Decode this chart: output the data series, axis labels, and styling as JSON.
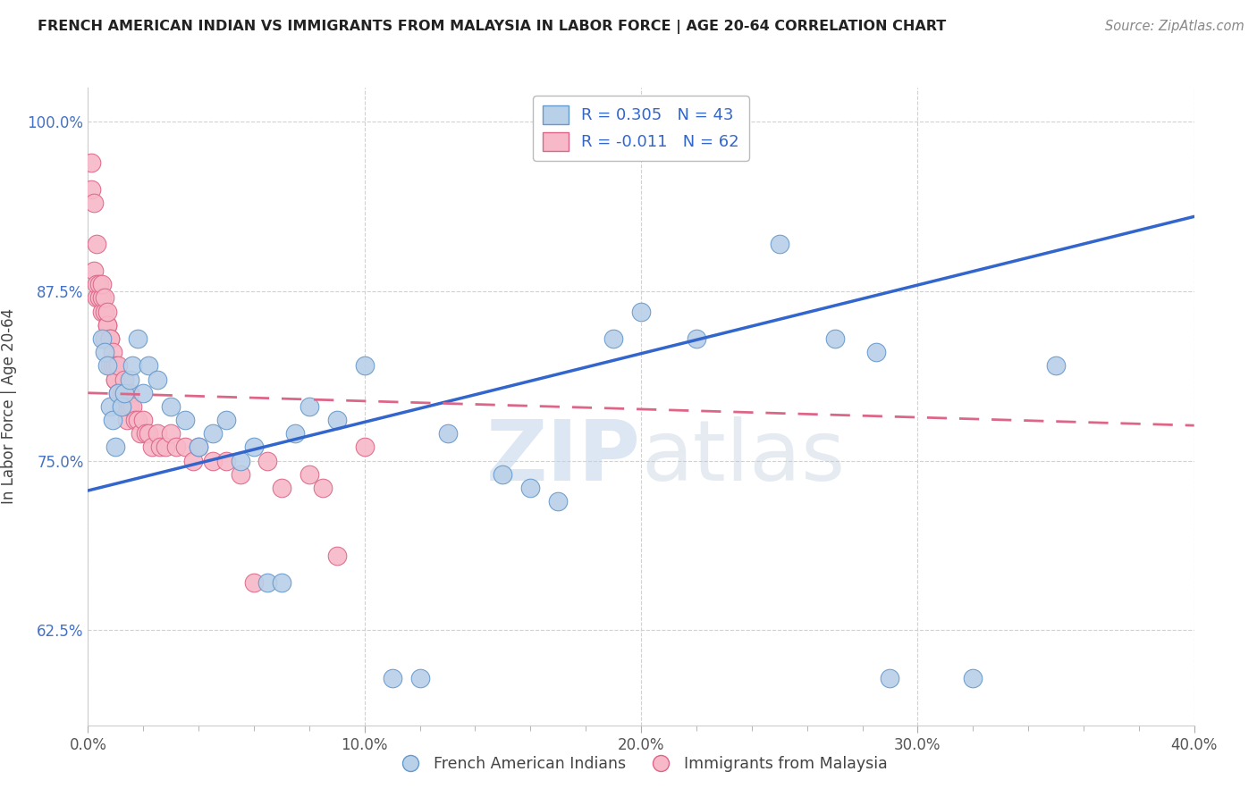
{
  "title": "FRENCH AMERICAN INDIAN VS IMMIGRANTS FROM MALAYSIA IN LABOR FORCE | AGE 20-64 CORRELATION CHART",
  "source": "Source: ZipAtlas.com",
  "ylabel": "In Labor Force | Age 20-64",
  "x_min": 0.0,
  "x_max": 0.4,
  "y_min": 0.555,
  "y_max": 1.025,
  "x_ticks": [
    0.0,
    0.1,
    0.2,
    0.3,
    0.4
  ],
  "x_tick_labels": [
    "0.0%",
    "10.0%",
    "20.0%",
    "30.0%",
    "40.0%"
  ],
  "y_ticks": [
    0.625,
    0.75,
    0.875,
    1.0
  ],
  "y_tick_labels": [
    "62.5%",
    "75.0%",
    "87.5%",
    "100.0%"
  ],
  "blue_color": "#b8d0e8",
  "pink_color": "#f7b8c8",
  "blue_edge": "#6699cc",
  "pink_edge": "#dd6688",
  "trend_blue": "#3366cc",
  "trend_pink": "#dd6688",
  "R_blue": 0.305,
  "N_blue": 43,
  "R_pink": -0.011,
  "N_pink": 62,
  "legend_label_blue": "French American Indians",
  "legend_label_pink": "Immigrants from Malaysia",
  "watermark_zip": "ZIP",
  "watermark_atlas": "atlas",
  "blue_points_x": [
    0.005,
    0.006,
    0.007,
    0.008,
    0.009,
    0.01,
    0.011,
    0.012,
    0.013,
    0.015,
    0.016,
    0.018,
    0.02,
    0.022,
    0.025,
    0.03,
    0.035,
    0.04,
    0.045,
    0.05,
    0.055,
    0.06,
    0.065,
    0.07,
    0.075,
    0.08,
    0.09,
    0.1,
    0.11,
    0.12,
    0.13,
    0.15,
    0.16,
    0.17,
    0.19,
    0.2,
    0.22,
    0.25,
    0.27,
    0.285,
    0.29,
    0.32,
    0.35
  ],
  "blue_points_y": [
    0.84,
    0.83,
    0.82,
    0.79,
    0.78,
    0.76,
    0.8,
    0.79,
    0.8,
    0.81,
    0.82,
    0.84,
    0.8,
    0.82,
    0.81,
    0.79,
    0.78,
    0.76,
    0.77,
    0.78,
    0.75,
    0.76,
    0.66,
    0.66,
    0.77,
    0.79,
    0.78,
    0.82,
    0.59,
    0.59,
    0.77,
    0.74,
    0.73,
    0.72,
    0.84,
    0.86,
    0.84,
    0.91,
    0.84,
    0.83,
    0.59,
    0.59,
    0.82
  ],
  "pink_points_x": [
    0.001,
    0.001,
    0.002,
    0.002,
    0.003,
    0.003,
    0.003,
    0.004,
    0.004,
    0.005,
    0.005,
    0.005,
    0.006,
    0.006,
    0.006,
    0.007,
    0.007,
    0.007,
    0.008,
    0.008,
    0.008,
    0.009,
    0.009,
    0.01,
    0.01,
    0.01,
    0.011,
    0.011,
    0.012,
    0.012,
    0.013,
    0.013,
    0.014,
    0.014,
    0.015,
    0.015,
    0.016,
    0.017,
    0.018,
    0.019,
    0.02,
    0.021,
    0.022,
    0.023,
    0.025,
    0.026,
    0.028,
    0.03,
    0.032,
    0.035,
    0.038,
    0.04,
    0.045,
    0.05,
    0.055,
    0.06,
    0.065,
    0.07,
    0.08,
    0.085,
    0.09,
    0.1
  ],
  "pink_points_y": [
    0.97,
    0.95,
    0.94,
    0.89,
    0.91,
    0.87,
    0.88,
    0.87,
    0.88,
    0.86,
    0.87,
    0.88,
    0.86,
    0.87,
    0.84,
    0.85,
    0.85,
    0.86,
    0.84,
    0.82,
    0.84,
    0.82,
    0.83,
    0.81,
    0.82,
    0.81,
    0.8,
    0.82,
    0.8,
    0.79,
    0.8,
    0.81,
    0.79,
    0.78,
    0.79,
    0.8,
    0.79,
    0.78,
    0.78,
    0.77,
    0.78,
    0.77,
    0.77,
    0.76,
    0.77,
    0.76,
    0.76,
    0.77,
    0.76,
    0.76,
    0.75,
    0.76,
    0.75,
    0.75,
    0.74,
    0.66,
    0.75,
    0.73,
    0.74,
    0.73,
    0.68,
    0.76
  ],
  "blue_trendline_x0": 0.0,
  "blue_trendline_y0": 0.728,
  "blue_trendline_x1": 0.4,
  "blue_trendline_y1": 0.93,
  "pink_trendline_x0": 0.0,
  "pink_trendline_y0": 0.8,
  "pink_trendline_x1": 0.4,
  "pink_trendline_y1": 0.776
}
